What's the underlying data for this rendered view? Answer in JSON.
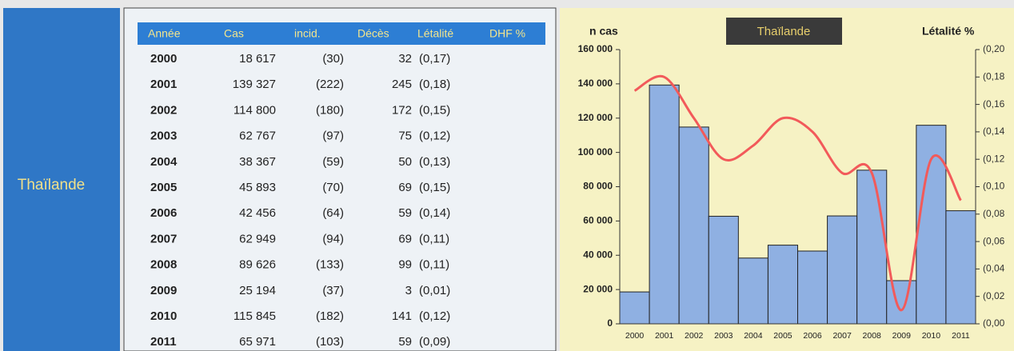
{
  "label": "Thaïlande",
  "table": {
    "header": [
      "Année",
      "Cas",
      "incid.",
      "Décès",
      "Létalité",
      "DHF %"
    ],
    "rows": [
      [
        "2000",
        "18 617",
        "(30)",
        "32",
        "(0,17)"
      ],
      [
        "2001",
        "139 327",
        "(222)",
        "245",
        "(0,18)"
      ],
      [
        "2002",
        "114 800",
        "(180)",
        "172",
        "(0,15)"
      ],
      [
        "2003",
        "62 767",
        "(97)",
        "75",
        "(0,12)"
      ],
      [
        "2004",
        "38 367",
        "(59)",
        "50",
        "(0,13)"
      ],
      [
        "2005",
        "45 893",
        "(70)",
        "69",
        "(0,15)"
      ],
      [
        "2006",
        "42 456",
        "(64)",
        "59",
        "(0,14)"
      ],
      [
        "2007",
        "62 949",
        "(94)",
        "69",
        "(0,11)"
      ],
      [
        "2008",
        "89 626",
        "(133)",
        "99",
        "(0,11)"
      ],
      [
        "2009",
        "25 194",
        "(37)",
        "3",
        "(0,01)"
      ],
      [
        "2010",
        "115 845",
        "(182)",
        "141",
        "(0,12)"
      ],
      [
        "2011",
        "65 971",
        "(103)",
        "59",
        "(0,09)"
      ]
    ]
  },
  "chart_data": {
    "type": "bar",
    "title": "Thaïlande",
    "ylabel": "n cas",
    "y2label": "Létalité %",
    "categories": [
      "2000",
      "2001",
      "2002",
      "2003",
      "2004",
      "2005",
      "2006",
      "2007",
      "2008",
      "2009",
      "2010",
      "2011"
    ],
    "series": [
      {
        "name": "n cas",
        "color": "#8fb0e2",
        "values": [
          18617,
          139327,
          114800,
          62767,
          38367,
          45893,
          42456,
          62949,
          89626,
          25194,
          115845,
          65971
        ]
      },
      {
        "name": "Létalité %",
        "color": "#f25a5a",
        "axis": "y2",
        "values": [
          0.17,
          0.18,
          0.15,
          0.12,
          0.13,
          0.15,
          0.14,
          0.11,
          0.11,
          0.01,
          0.12,
          0.09
        ]
      }
    ],
    "ylim": [
      0,
      160000
    ],
    "yticks": [
      0,
      {
        "value": 20000,
        "label": "20 000"
      },
      {
        "value": 40000,
        "label": "40 000"
      },
      {
        "value": 60000,
        "label": "60 000"
      },
      {
        "value": 80000,
        "label": "80 000"
      },
      {
        "value": 100000,
        "label": "100 000"
      },
      {
        "value": 120000,
        "label": "120 000"
      },
      {
        "value": 140000,
        "label": "140 000"
      },
      {
        "value": 160000,
        "label": "160 000"
      }
    ],
    "y2lim": [
      0,
      0.2
    ],
    "y2ticks": [
      {
        "value": 0,
        "label": "(0,00"
      },
      {
        "value": 0.02,
        "label": "(0,02"
      },
      {
        "value": 0.04,
        "label": "(0,04"
      },
      {
        "value": 0.06,
        "label": "(0,06"
      },
      {
        "value": 0.08,
        "label": "(0,08"
      },
      {
        "value": 0.1,
        "label": "(0,10"
      },
      {
        "value": 0.12,
        "label": "(0,12"
      },
      {
        "value": 0.14,
        "label": "(0,14"
      },
      {
        "value": 0.16,
        "label": "(0,16"
      },
      {
        "value": 0.18,
        "label": "(0,18"
      },
      {
        "value": 0.2,
        "label": "(0,20"
      }
    ]
  }
}
